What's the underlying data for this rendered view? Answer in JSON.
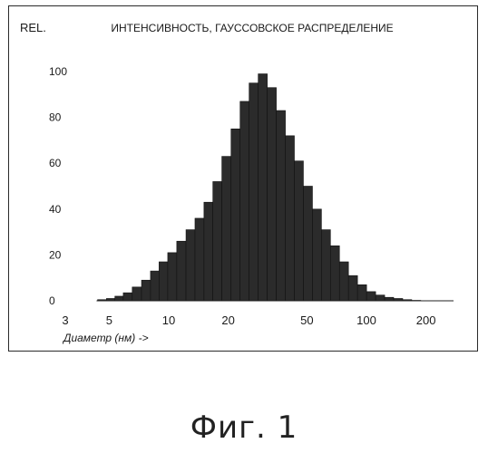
{
  "chart_data": {
    "type": "bar",
    "title": "ИНТЕНСИВНОСТЬ, ГАУССОВСКОЕ РАСПРЕДЕЛЕНИЕ",
    "ylabel": "REL.",
    "xlabel": "Диаметр (нм) ->",
    "x_scale": "log",
    "xlim": [
      3,
      300
    ],
    "ylim": [
      0,
      100
    ],
    "x_ticks": [
      "3",
      "5",
      "10",
      "20",
      "50",
      "100",
      "200"
    ],
    "y_ticks": [
      "0",
      "20",
      "40",
      "60",
      "80",
      "100"
    ],
    "x": [
      4.6,
      5.1,
      5.6,
      6.2,
      6.9,
      7.7,
      8.5,
      9.4,
      10.4,
      11.6,
      12.9,
      14.3,
      15.9,
      17.6,
      19.6,
      21.8,
      24.2,
      26.9,
      29.9,
      33.2,
      36.9,
      41.0,
      45.5,
      50.6,
      56.2,
      62.4,
      69.3,
      77.0,
      85.5,
      95.0,
      105.6,
      117.3,
      130.3,
      144.7,
      160.8,
      178.6
    ],
    "values": [
      0.5,
      1,
      2,
      3.5,
      6,
      9,
      13,
      17,
      21,
      26,
      31,
      36,
      43,
      52,
      63,
      75,
      87,
      95,
      99,
      93,
      83,
      72,
      61,
      50,
      40,
      31,
      24,
      17,
      11,
      7,
      4,
      2.5,
      1.5,
      1,
      0.5,
      0.2
    ],
    "grid": false,
    "legend": "none",
    "bar_color": "#2b2b2b"
  },
  "caption": "Фиг. 1"
}
